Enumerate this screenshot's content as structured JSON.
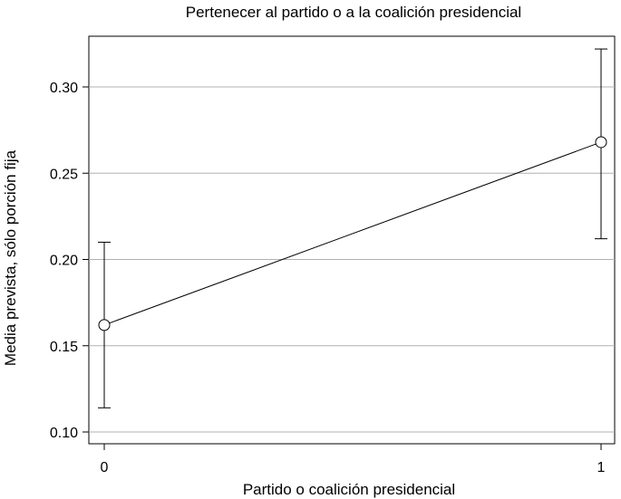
{
  "chart_data": {
    "type": "line",
    "title": "Pertenecer al partido o a la coalición presidencial",
    "xlabel": "Partido o coalición presidencial",
    "ylabel": "Media prevista, sólo porción fija",
    "x_ticks": [
      "0",
      "1"
    ],
    "y_ticks": [
      "0.10",
      "0.15",
      "0.20",
      "0.25",
      "0.30"
    ],
    "ylim": [
      0.095,
      0.33
    ],
    "grid": true,
    "series": [
      {
        "x": [
          0,
          1
        ],
        "y": [
          0.162,
          0.268
        ],
        "ci_low": [
          0.114,
          0.212
        ],
        "ci_high": [
          0.21,
          0.322
        ]
      }
    ]
  }
}
